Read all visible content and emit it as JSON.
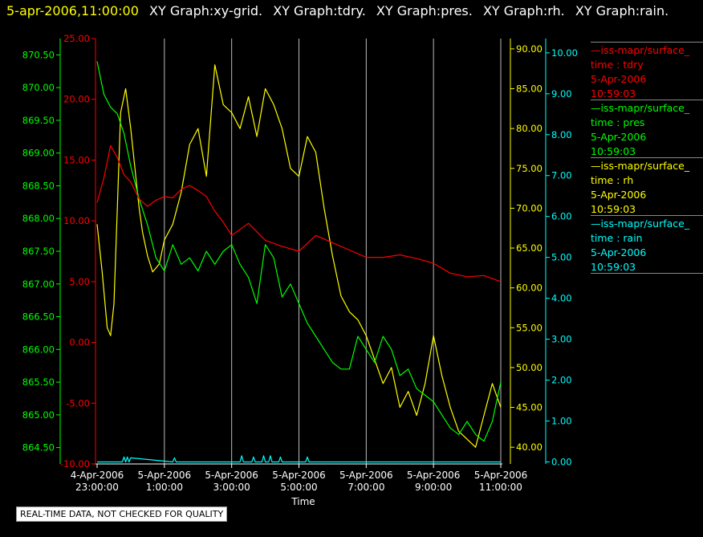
{
  "header": {
    "timestamp": "5-apr-2006,11:00:00",
    "graph_titles": [
      "XY Graph:xy-grid.",
      "XY Graph:tdry.",
      "XY Graph:pres.",
      "XY Graph:rh.",
      "XY Graph:rain."
    ]
  },
  "footer": {
    "quality_note": "REAL-TIME DATA, NOT CHECKED FOR QUALITY"
  },
  "legend": [
    {
      "source": "—iss-mapr/surface_",
      "variable": "time : tdry",
      "date": "5-Apr-2006",
      "time": "10:59:03",
      "color": "#ff0000"
    },
    {
      "source": "—iss-mapr/surface_",
      "variable": "time : pres",
      "date": "5-Apr-2006",
      "time": "10:59:03",
      "color": "#00ff00"
    },
    {
      "source": "—iss-mapr/surface_",
      "variable": "time : rh",
      "date": "5-Apr-2006",
      "time": "10:59:03",
      "color": "#ffff00"
    },
    {
      "source": "—iss-mapr/surface_",
      "variable": "time : rain",
      "date": "5-Apr-2006",
      "time": "10:59:03",
      "color": "#00ffff"
    }
  ],
  "chart_data": {
    "type": "line",
    "xlabel": "Time",
    "x_range": [
      "4-Apr-2006 23:00:00",
      "5-Apr-2006 11:00:00"
    ],
    "x_ticks": [
      {
        "date": "4-Apr-2006",
        "time": "23:00:00"
      },
      {
        "date": "5-Apr-2006",
        "time": "1:00:00"
      },
      {
        "date": "5-Apr-2006",
        "time": "3:00:00"
      },
      {
        "date": "5-Apr-2006",
        "time": "5:00:00"
      },
      {
        "date": "5-Apr-2006",
        "time": "7:00:00"
      },
      {
        "date": "5-Apr-2006",
        "time": "9:00:00"
      },
      {
        "date": "5-Apr-2006",
        "time": "11:00:00"
      }
    ],
    "x_ticks_hours": [
      0,
      2,
      4,
      6,
      8,
      10,
      12
    ],
    "grid": "vertical",
    "axes": [
      {
        "id": "pres",
        "side": "left-outer",
        "color": "#00ff00",
        "min": 864.25,
        "max": 870.75,
        "ticks": [
          "864.50",
          "865.00",
          "865.50",
          "866.00",
          "866.50",
          "867.00",
          "867.50",
          "868.00",
          "868.50",
          "869.00",
          "869.50",
          "870.00",
          "870.50"
        ]
      },
      {
        "id": "tdry",
        "side": "left-inner",
        "color": "#ff0000",
        "min": -10,
        "max": 25,
        "ticks": [
          "-10.00",
          "-5.00",
          "0.00",
          "5.00",
          "10.00",
          "15.00",
          "20.00",
          "25.00"
        ]
      },
      {
        "id": "rh",
        "side": "right-inner",
        "color": "#ffff00",
        "min": 37.9,
        "max": 91.3,
        "ticks": [
          "40.00",
          "45.00",
          "50.00",
          "55.00",
          "60.00",
          "65.00",
          "70.00",
          "75.00",
          "80.00",
          "85.00",
          "90.00"
        ]
      },
      {
        "id": "rain",
        "side": "right-outer",
        "color": "#00ffff",
        "min": -0.05,
        "max": 10.35,
        "ticks": [
          "0.00",
          "1.00",
          "2.00",
          "3.00",
          "4.00",
          "5.00",
          "6.00",
          "7.00",
          "8.00",
          "9.00",
          "10.00"
        ]
      }
    ],
    "series": [
      {
        "name": "tdry",
        "axis": "tdry",
        "color": "#ff0000",
        "x": [
          0,
          0.2,
          0.4,
          0.6,
          0.8,
          1,
          1.25,
          1.5,
          1.75,
          2,
          2.25,
          2.5,
          2.75,
          3,
          3.25,
          3.5,
          3.75,
          4,
          4.5,
          5,
          5.5,
          6,
          6.5,
          7,
          7.5,
          8,
          8.5,
          9,
          9.5,
          10,
          10.5,
          11,
          11.5,
          12
        ],
        "values": [
          11.5,
          13.5,
          16.2,
          15.2,
          13.8,
          13.2,
          11.8,
          11.2,
          11.7,
          12.0,
          11.9,
          12.6,
          12.9,
          12.5,
          12.0,
          10.8,
          9.9,
          8.8,
          9.8,
          8.4,
          7.9,
          7.5,
          8.8,
          8.2,
          7.6,
          7.0,
          7.0,
          7.2,
          6.9,
          6.5,
          5.7,
          5.4,
          5.5,
          5.0
        ]
      },
      {
        "name": "pres",
        "axis": "pres",
        "color": "#00ff00",
        "x": [
          0,
          0.2,
          0.4,
          0.6,
          0.8,
          1,
          1.25,
          1.5,
          1.75,
          2,
          2.25,
          2.5,
          2.75,
          3,
          3.25,
          3.5,
          3.75,
          4,
          4.25,
          4.5,
          4.75,
          5,
          5.25,
          5.5,
          5.75,
          6,
          6.25,
          6.5,
          6.75,
          7,
          7.25,
          7.5,
          7.75,
          8,
          8.25,
          8.5,
          8.75,
          9,
          9.25,
          9.5,
          9.75,
          10,
          10.25,
          10.5,
          10.75,
          11,
          11.25,
          11.5,
          11.75,
          12
        ],
        "values": [
          870.4,
          869.9,
          869.7,
          869.6,
          869.3,
          868.8,
          868.3,
          867.9,
          867.4,
          867.2,
          867.6,
          867.3,
          867.4,
          867.2,
          867.5,
          867.3,
          867.5,
          867.6,
          867.3,
          867.1,
          866.7,
          867.6,
          867.4,
          866.8,
          867.0,
          866.7,
          866.4,
          866.2,
          866.0,
          865.8,
          865.7,
          865.7,
          866.2,
          866.0,
          865.8,
          866.2,
          866.0,
          865.6,
          865.7,
          865.4,
          865.3,
          865.2,
          865.0,
          864.8,
          864.7,
          864.9,
          864.7,
          864.6,
          864.9,
          865.5
        ]
      },
      {
        "name": "rh",
        "axis": "rh",
        "color": "#ffff00",
        "x": [
          0,
          0.15,
          0.3,
          0.4,
          0.5,
          0.6,
          0.7,
          0.85,
          1,
          1.1,
          1.25,
          1.35,
          1.5,
          1.65,
          1.85,
          2,
          2.25,
          2.5,
          2.75,
          3,
          3.25,
          3.5,
          3.75,
          4,
          4.25,
          4.5,
          4.75,
          5,
          5.25,
          5.5,
          5.75,
          6,
          6.25,
          6.5,
          6.75,
          7,
          7.25,
          7.5,
          7.75,
          8,
          8.25,
          8.5,
          8.75,
          9,
          9.25,
          9.5,
          9.75,
          10,
          10.25,
          10.5,
          10.75,
          11,
          11.25,
          11.5,
          11.75,
          12
        ],
        "values": [
          68,
          62,
          55,
          54,
          58,
          70,
          82,
          85,
          80,
          76,
          70,
          67,
          64,
          62,
          63,
          66,
          68,
          72,
          78,
          80,
          74,
          88,
          83,
          82,
          80,
          84,
          79,
          85,
          83,
          80,
          75,
          74,
          79,
          77,
          70,
          64,
          59,
          57,
          56,
          54,
          51,
          48,
          50,
          45,
          47,
          44,
          48,
          54,
          49,
          45,
          42,
          41,
          40,
          44,
          48,
          45
        ]
      },
      {
        "name": "rain",
        "axis": "rain",
        "color": "#00ffff",
        "x": [
          0,
          0.75,
          0.8,
          0.85,
          0.9,
          0.95,
          1,
          2.25,
          2.3,
          2.35,
          4.25,
          4.3,
          4.35,
          4.6,
          4.65,
          4.7,
          4.9,
          4.95,
          5,
          5.1,
          5.15,
          5.2,
          5.4,
          5.45,
          5.5,
          6.2,
          6.25,
          6.3,
          12
        ],
        "values": [
          0,
          0,
          0.12,
          0,
          0.12,
          0,
          0.1,
          0,
          0.1,
          0,
          0,
          0.15,
          0,
          0,
          0.12,
          0,
          0,
          0.15,
          0,
          0,
          0.15,
          0,
          0,
          0.12,
          0,
          0,
          0.12,
          0,
          0
        ]
      }
    ]
  }
}
